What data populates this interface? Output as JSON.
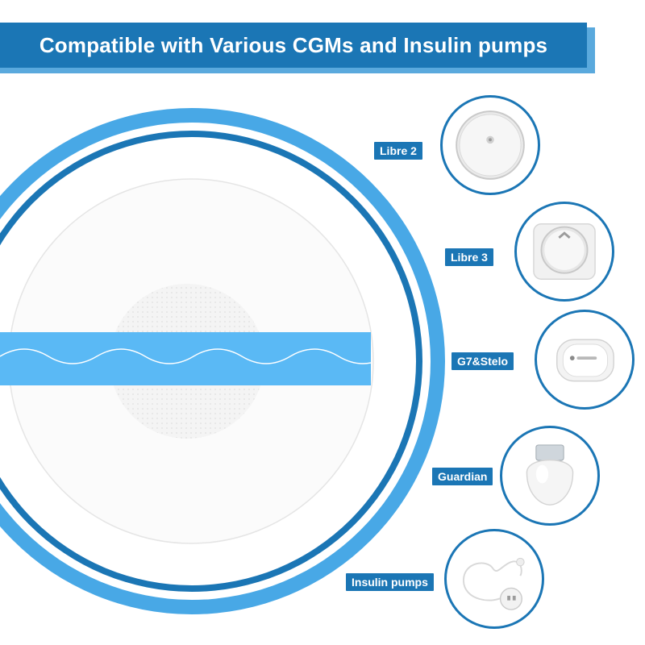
{
  "banner": {
    "title": "Compatible with Various CGMs and Insulin pumps"
  },
  "colors": {
    "primary": "#1b76b5",
    "accent": "#48a8e6",
    "strip": "#5ab9f5"
  },
  "hero": {
    "description_icon": "adhesive-patch-image"
  },
  "devices": [
    {
      "label": "Libre 2",
      "icon": "libre-2-sensor-icon"
    },
    {
      "label": "Libre 3",
      "icon": "libre-3-sensor-icon"
    },
    {
      "label": "G7&Stelo",
      "icon": "g7-stelo-sensor-icon"
    },
    {
      "label": "Guardian",
      "icon": "guardian-sensor-icon"
    },
    {
      "label": "Insulin pumps",
      "icon": "insulin-pump-icon"
    }
  ]
}
